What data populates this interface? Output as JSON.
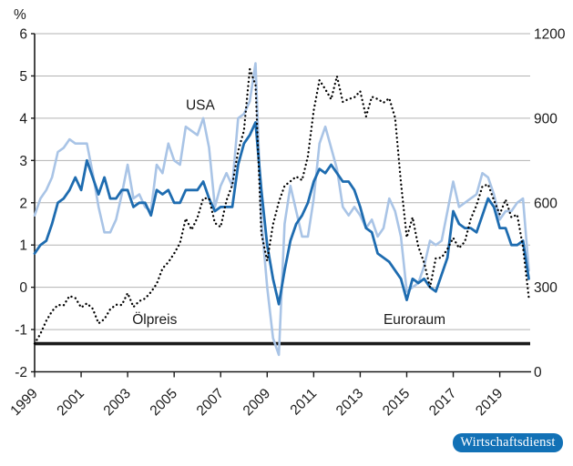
{
  "badge": {
    "label": "Wirtschaftsdienst",
    "color": "#1271b6"
  },
  "chart_data": {
    "type": "line",
    "title": "",
    "x_unit": "quarterly",
    "x_start_year": 1999,
    "x_step": 0.25,
    "x_tick_years": [
      1999,
      2001,
      2003,
      2005,
      2007,
      2009,
      2011,
      2013,
      2015,
      2017,
      2019
    ],
    "left_axis": {
      "unit": "%",
      "min": -2,
      "max": 6,
      "ticks": [
        6,
        5,
        4,
        3,
        2,
        1,
        0,
        -1,
        -2
      ],
      "grid": true
    },
    "right_axis": {
      "min": 0,
      "max": 1200,
      "ticks": [
        1200,
        900,
        600,
        300,
        0
      ]
    },
    "baseline": {
      "axis": "right",
      "value": 100,
      "color": "#1a1a1a",
      "meaning": "oil price index base line"
    },
    "colors": {
      "usa": "#a9c4e6",
      "euroraum": "#1e6cb0",
      "oelpreis": "#000000",
      "grid": "#b3b3b3",
      "axis": "#1a1a1a"
    },
    "annotations": [
      {
        "label": "USA",
        "year": 2005.5,
        "value": 4.2
      },
      {
        "label": "Ölpreis",
        "year": 2003.2,
        "value": -0.87
      },
      {
        "label": "Euroraum",
        "year": 2014.0,
        "value": -0.87
      }
    ],
    "series": [
      {
        "name": "USA",
        "axis": "left",
        "style": "solid",
        "color_key": "usa",
        "values": [
          1.7,
          2.1,
          2.3,
          2.6,
          3.2,
          3.3,
          3.5,
          3.4,
          3.4,
          3.4,
          2.7,
          1.9,
          1.3,
          1.3,
          1.6,
          2.2,
          2.9,
          2.1,
          2.2,
          1.9,
          1.8,
          2.9,
          2.7,
          3.4,
          3.0,
          2.9,
          3.8,
          3.7,
          3.6,
          4.0,
          3.3,
          1.9,
          2.4,
          2.7,
          2.4,
          4.0,
          4.1,
          4.4,
          5.3,
          1.6,
          0.0,
          -1.2,
          -1.6,
          1.5,
          2.4,
          1.8,
          1.2,
          1.2,
          2.1,
          3.4,
          3.8,
          3.3,
          2.8,
          1.9,
          1.7,
          1.9,
          1.7,
          1.4,
          1.6,
          1.2,
          1.4,
          2.1,
          1.8,
          1.2,
          -0.1,
          0.0,
          0.1,
          0.5,
          1.1,
          1.0,
          1.1,
          1.8,
          2.5,
          1.9,
          2.0,
          2.1,
          2.2,
          2.7,
          2.6,
          2.2,
          1.6,
          1.8,
          1.8,
          2.0,
          2.1,
          0.4
        ]
      },
      {
        "name": "Euroraum",
        "axis": "left",
        "style": "solid",
        "color_key": "euroraum",
        "values": [
          0.8,
          1.0,
          1.1,
          1.5,
          2.0,
          2.1,
          2.3,
          2.6,
          2.3,
          3.0,
          2.6,
          2.2,
          2.6,
          2.1,
          2.1,
          2.3,
          2.3,
          1.9,
          2.0,
          2.0,
          1.7,
          2.3,
          2.2,
          2.3,
          2.0,
          2.0,
          2.3,
          2.3,
          2.3,
          2.5,
          2.1,
          1.8,
          1.9,
          1.9,
          1.9,
          2.9,
          3.4,
          3.6,
          3.9,
          2.3,
          1.0,
          0.2,
          -0.4,
          0.4,
          1.1,
          1.5,
          1.7,
          2.0,
          2.5,
          2.8,
          2.7,
          2.9,
          2.7,
          2.5,
          2.5,
          2.3,
          1.9,
          1.4,
          1.3,
          0.8,
          0.7,
          0.6,
          0.4,
          0.2,
          -0.3,
          0.2,
          0.1,
          0.2,
          0.0,
          -0.1,
          0.3,
          0.7,
          1.8,
          1.5,
          1.4,
          1.4,
          1.3,
          1.7,
          2.1,
          1.9,
          1.4,
          1.4,
          1.0,
          1.0,
          1.1,
          0.2
        ]
      },
      {
        "name": "Ölpreis",
        "axis": "right",
        "style": "dotted",
        "color_key": "oelpreis",
        "values": [
          100,
          135,
          181,
          215,
          237,
          236,
          269,
          262,
          228,
          243,
          224,
          172,
          187,
          222,
          238,
          237,
          279,
          230,
          251,
          260,
          283,
          312,
          367,
          389,
          420,
          457,
          544,
          504,
          547,
          616,
          615,
          528,
          514,
          608,
          663,
          783,
          856,
          1074,
          1018,
          491,
          394,
          523,
          603,
          660,
          676,
          693,
          680,
          765,
          928,
          1035,
          1003,
          967,
          1049,
          958,
          968,
          974,
          996,
          906,
          976,
          968,
          955,
          971,
          902,
          672,
          477,
          548,
          444,
          387,
          300,
          403,
          405,
          436,
          475,
          439,
          462,
          542,
          591,
          658,
          665,
          609,
          559,
          611,
          548,
          558,
          443,
          263
        ]
      }
    ]
  }
}
